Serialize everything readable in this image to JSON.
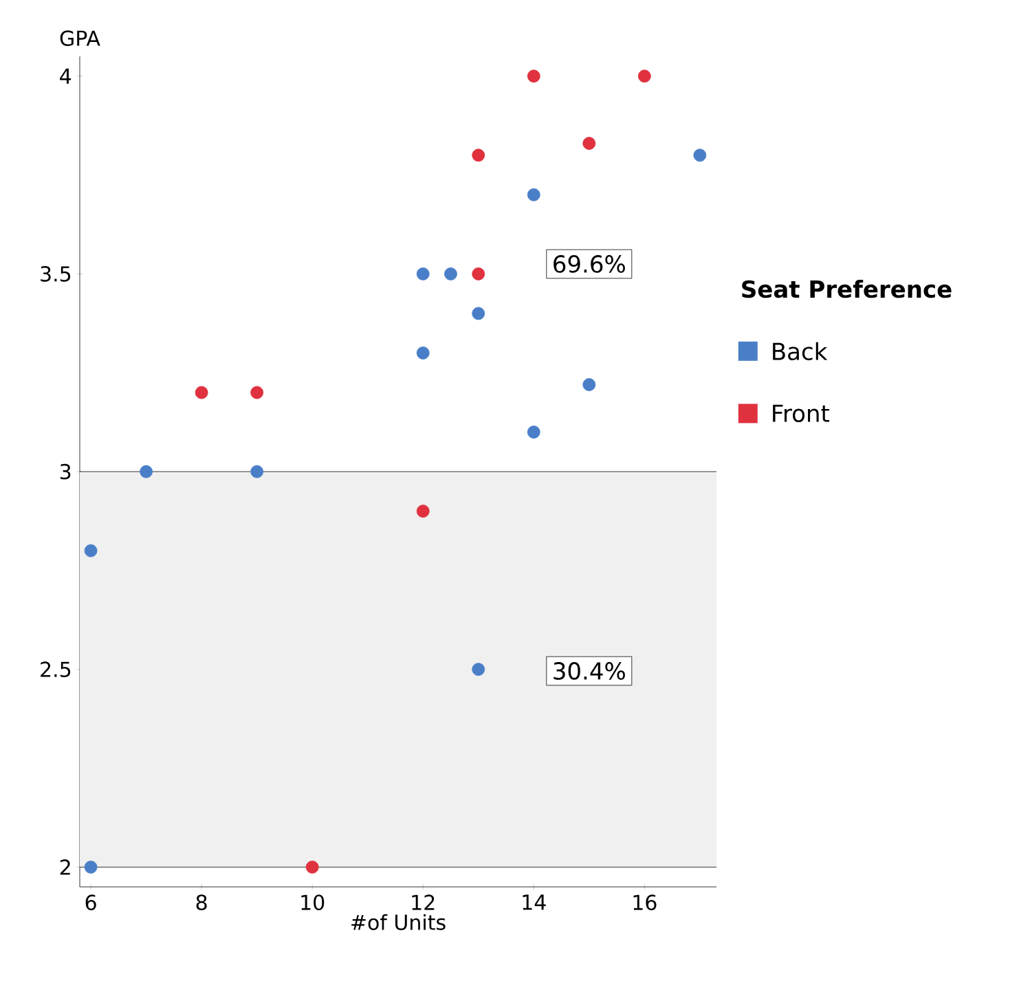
{
  "chart_data": {
    "type": "scatter",
    "xlabel": "#of Units",
    "ylabel": "GPA",
    "legend_title": "Seat Preference",
    "xlim": [
      5.8,
      17.3
    ],
    "ylim": [
      1.95,
      4.05
    ],
    "xticks": [
      6,
      8,
      10,
      12,
      14,
      16
    ],
    "yticks": [
      2,
      2.5,
      3,
      3.5,
      4
    ],
    "series": [
      {
        "name": "Back",
        "color": "#4a7fc8",
        "x": [
          6,
          6,
          7,
          9,
          12,
          12,
          12.5,
          13,
          13,
          14,
          14,
          15,
          17
        ],
        "values": [
          2.8,
          2.0,
          3.0,
          3.0,
          3.3,
          3.5,
          3.5,
          3.4,
          2.5,
          3.7,
          3.1,
          3.22,
          3.8
        ]
      },
      {
        "name": "Front",
        "color": "#e0313f",
        "x": [
          8,
          9,
          10,
          12,
          13,
          13,
          14,
          15,
          16
        ],
        "values": [
          3.2,
          3.2,
          2.0,
          2.9,
          3.8,
          3.5,
          4.0,
          3.83,
          4.0
        ]
      }
    ],
    "bands": [
      {
        "axis": "y",
        "from": 2,
        "to": 3,
        "color": "#f0f0f0"
      }
    ],
    "annotations": [
      "69.6%",
      "30.4%"
    ],
    "legend": "right",
    "marker": "circle"
  }
}
